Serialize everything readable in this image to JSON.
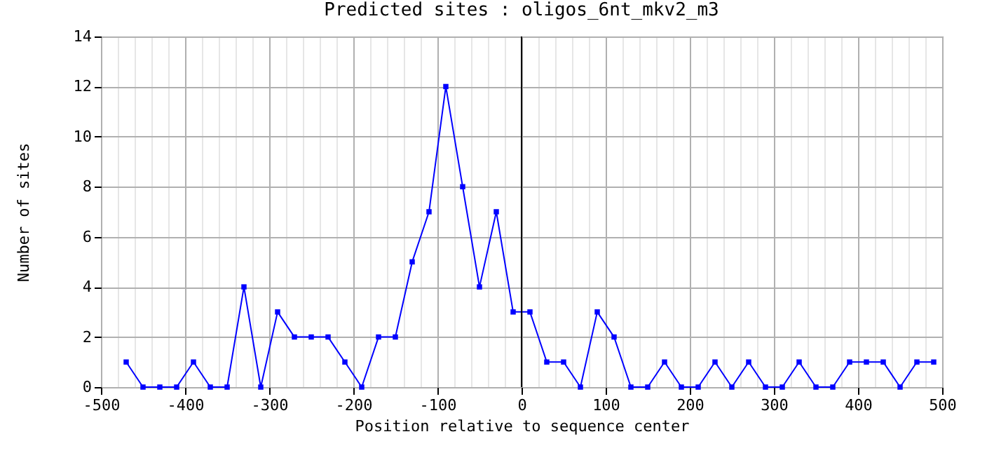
{
  "chart_data": {
    "type": "line",
    "title": "Predicted sites : oligos_6nt_mkv2_m3",
    "xlabel": "Position relative to sequence center",
    "ylabel": "Number of sites",
    "x": [
      -470,
      -450,
      -430,
      -410,
      -390,
      -370,
      -350,
      -330,
      -310,
      -290,
      -270,
      -250,
      -230,
      -210,
      -190,
      -170,
      -150,
      -130,
      -110,
      -90,
      -70,
      -50,
      -30,
      -10,
      10,
      30,
      50,
      70,
      90,
      110,
      130,
      150,
      170,
      190,
      210,
      230,
      250,
      270,
      290,
      310,
      330,
      350,
      370,
      390,
      410,
      430,
      450,
      470,
      490
    ],
    "series": [
      {
        "color": "#0000ff",
        "values": [
          1,
          0,
          0,
          0,
          1,
          0,
          0,
          4,
          0,
          3,
          2,
          2,
          2,
          1,
          0,
          2,
          2,
          5,
          7,
          12,
          8,
          4,
          7,
          3,
          3,
          1,
          1,
          0,
          3,
          2,
          0,
          0,
          1,
          0,
          0,
          1,
          0,
          1,
          0,
          0,
          1,
          0,
          0,
          1,
          1,
          1,
          0,
          1,
          1
        ]
      }
    ],
    "xlim": [
      -500,
      500
    ],
    "xticks": [
      -500,
      {
        "value": -480,
        "label": null
      },
      {
        "value": -460,
        "label": null
      },
      {
        "value": -440,
        "label": null
      },
      {
        "value": -420,
        "label": null
      },
      -400,
      {
        "value": -380,
        "label": null
      },
      {
        "value": -360,
        "label": null
      },
      {
        "value": -340,
        "label": null
      },
      {
        "value": -320,
        "label": null
      },
      -300,
      {
        "value": -280,
        "label": null
      },
      {
        "value": -260,
        "label": null
      },
      {
        "value": -240,
        "label": null
      },
      {
        "value": -220,
        "label": null
      },
      -200,
      {
        "value": -180,
        "label": null
      },
      {
        "value": -160,
        "label": null
      },
      {
        "value": -140,
        "label": null
      },
      {
        "value": -120,
        "label": null
      },
      -100,
      {
        "value": -80,
        "label": null
      },
      {
        "value": -60,
        "label": null
      },
      {
        "value": -40,
        "label": null
      },
      {
        "value": -20,
        "label": null
      },
      0,
      {
        "value": 20,
        "label": null
      },
      {
        "value": 40,
        "label": null
      },
      {
        "value": 60,
        "label": null
      },
      {
        "value": 80,
        "label": null
      },
      100,
      {
        "value": 120,
        "label": null
      },
      {
        "value": 140,
        "label": null
      },
      {
        "value": 160,
        "label": null
      },
      {
        "value": 180,
        "label": null
      },
      200,
      {
        "value": 220,
        "label": null
      },
      {
        "value": 240,
        "label": null
      },
      {
        "value": 260,
        "label": null
      },
      {
        "value": 280,
        "label": null
      },
      300,
      {
        "value": 320,
        "label": null
      },
      {
        "value": 340,
        "label": null
      },
      {
        "value": 360,
        "label": null
      },
      {
        "value": 380,
        "label": null
      },
      400,
      {
        "value": 420,
        "label": null
      },
      {
        "value": 440,
        "label": null
      },
      {
        "value": 460,
        "label": null
      },
      {
        "value": 480,
        "label": null
      },
      500
    ],
    "ylim": [
      0,
      14
    ],
    "yticks": [
      0,
      2,
      4,
      6,
      8,
      10,
      12,
      14
    ],
    "grid": true,
    "marker": "square",
    "line_style": "solid",
    "ref_lines": [
      {
        "axis": "x",
        "value": 0,
        "color": "#000000"
      }
    ]
  }
}
